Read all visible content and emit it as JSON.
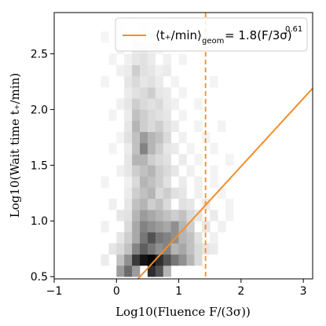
{
  "chart_data": {
    "type": "heatmap",
    "title": "",
    "xlabel": "Log10(Fluence F/(3σ))",
    "ylabel": "Log10(Wait time t₊/min)",
    "xlim": [
      -1.0,
      3.15
    ],
    "ylim": [
      0.48,
      2.87
    ],
    "xticks": [
      "−1",
      "0",
      "1",
      "2",
      "3"
    ],
    "xtick_values": [
      -1,
      0,
      1,
      2,
      3
    ],
    "yticks": [
      "0.5",
      "1.0",
      "1.5",
      "2.0",
      "2.5"
    ],
    "ytick_values": [
      0.5,
      1.0,
      1.5,
      2.0,
      2.5
    ],
    "colormap": "Greys",
    "histogram_bins": {
      "x_start": -0.5,
      "x_step": 0.125,
      "y_start": 0.5,
      "y_step": 0.1,
      "cells": [
        [
          0.0,
          0.5,
          0.4
        ],
        [
          0.125,
          0.5,
          0.6
        ],
        [
          0.25,
          0.5,
          0.4
        ],
        [
          0.5,
          0.5,
          0.85
        ],
        [
          0.625,
          0.5,
          0.7
        ],
        [
          0.75,
          0.5,
          0.3
        ],
        [
          -0.25,
          0.6,
          0.08
        ],
        [
          0.0,
          0.6,
          0.25
        ],
        [
          0.125,
          0.6,
          0.45
        ],
        [
          0.25,
          0.6,
          0.8
        ],
        [
          0.375,
          0.6,
          0.95
        ],
        [
          0.5,
          0.6,
          1.0
        ],
        [
          0.625,
          0.6,
          0.85
        ],
        [
          0.75,
          0.6,
          0.7
        ],
        [
          0.875,
          0.6,
          0.55
        ],
        [
          1.0,
          0.6,
          0.45
        ],
        [
          1.125,
          0.6,
          0.3
        ],
        [
          1.25,
          0.6,
          0.15
        ],
        [
          -0.125,
          0.7,
          0.1
        ],
        [
          0.0,
          0.7,
          0.15
        ],
        [
          0.125,
          0.7,
          0.25
        ],
        [
          0.25,
          0.7,
          0.5
        ],
        [
          0.375,
          0.7,
          0.65
        ],
        [
          0.5,
          0.7,
          0.55
        ],
        [
          0.625,
          0.7,
          0.45
        ],
        [
          0.75,
          0.7,
          0.5
        ],
        [
          0.875,
          0.7,
          0.3
        ],
        [
          1.0,
          0.7,
          0.35
        ],
        [
          1.125,
          0.7,
          0.25
        ],
        [
          1.25,
          0.7,
          0.15
        ],
        [
          1.375,
          0.7,
          0.1
        ],
        [
          1.5,
          0.7,
          0.08
        ],
        [
          0.0,
          0.8,
          0.1
        ],
        [
          0.125,
          0.8,
          0.2
        ],
        [
          0.25,
          0.8,
          0.35
        ],
        [
          0.375,
          0.8,
          0.55
        ],
        [
          0.5,
          0.8,
          0.7
        ],
        [
          0.625,
          0.8,
          0.55
        ],
        [
          0.75,
          0.8,
          0.5
        ],
        [
          0.875,
          0.8,
          0.45
        ],
        [
          1.0,
          0.8,
          0.3
        ],
        [
          1.125,
          0.8,
          0.25
        ],
        [
          1.25,
          0.8,
          0.12
        ],
        [
          1.5,
          0.8,
          0.06
        ],
        [
          -0.25,
          0.9,
          0.06
        ],
        [
          0.125,
          0.9,
          0.15
        ],
        [
          0.25,
          0.9,
          0.35
        ],
        [
          0.375,
          0.9,
          0.5
        ],
        [
          0.5,
          0.9,
          0.45
        ],
        [
          0.625,
          0.9,
          0.4
        ],
        [
          0.75,
          0.9,
          0.35
        ],
        [
          0.875,
          0.9,
          0.45
        ],
        [
          1.0,
          0.9,
          0.3
        ],
        [
          1.125,
          0.9,
          0.2
        ],
        [
          1.375,
          0.9,
          0.1
        ],
        [
          1.625,
          0.9,
          0.06
        ],
        [
          0.0,
          1.0,
          0.1
        ],
        [
          0.125,
          1.0,
          0.12
        ],
        [
          0.25,
          1.0,
          0.3
        ],
        [
          0.375,
          1.0,
          0.4
        ],
        [
          0.5,
          1.0,
          0.35
        ],
        [
          0.625,
          1.0,
          0.3
        ],
        [
          0.75,
          1.0,
          0.25
        ],
        [
          0.875,
          1.0,
          0.2
        ],
        [
          1.0,
          1.0,
          0.25
        ],
        [
          1.125,
          1.0,
          0.15
        ],
        [
          1.25,
          1.0,
          0.1
        ],
        [
          1.5,
          1.0,
          0.08
        ],
        [
          1.75,
          1.0,
          0.05
        ],
        [
          -0.125,
          1.1,
          0.06
        ],
        [
          0.125,
          1.1,
          0.1
        ],
        [
          0.25,
          1.1,
          0.25
        ],
        [
          0.375,
          1.1,
          0.3
        ],
        [
          0.5,
          1.1,
          0.2
        ],
        [
          0.625,
          1.1,
          0.25
        ],
        [
          0.75,
          1.1,
          0.15
        ],
        [
          1.0,
          1.1,
          0.12
        ],
        [
          1.125,
          1.1,
          0.1
        ],
        [
          1.375,
          1.1,
          0.08
        ],
        [
          1.75,
          1.1,
          0.05
        ],
        [
          0.125,
          1.2,
          0.08
        ],
        [
          0.25,
          1.2,
          0.2
        ],
        [
          0.375,
          1.2,
          0.25
        ],
        [
          0.5,
          1.2,
          0.3
        ],
        [
          0.625,
          1.2,
          0.15
        ],
        [
          0.75,
          1.2,
          0.2
        ],
        [
          0.875,
          1.2,
          0.12
        ],
        [
          1.0,
          1.2,
          0.1
        ],
        [
          1.25,
          1.2,
          0.06
        ],
        [
          1.625,
          1.2,
          0.05
        ],
        [
          -0.25,
          1.3,
          0.05
        ],
        [
          0.125,
          1.3,
          0.06
        ],
        [
          0.25,
          1.3,
          0.15
        ],
        [
          0.375,
          1.3,
          0.3
        ],
        [
          0.5,
          1.3,
          0.25
        ],
        [
          0.625,
          1.3,
          0.2
        ],
        [
          0.75,
          1.3,
          0.12
        ],
        [
          1.0,
          1.3,
          0.08
        ],
        [
          1.25,
          1.3,
          0.06
        ],
        [
          1.5,
          1.3,
          0.05
        ],
        [
          0.0,
          1.4,
          0.06
        ],
        [
          0.125,
          1.4,
          0.1
        ],
        [
          0.25,
          1.4,
          0.2
        ],
        [
          0.375,
          1.4,
          0.25
        ],
        [
          0.5,
          1.4,
          0.3
        ],
        [
          0.625,
          1.4,
          0.2
        ],
        [
          0.75,
          1.4,
          0.15
        ],
        [
          0.875,
          1.4,
          0.1
        ],
        [
          1.125,
          1.4,
          0.06
        ],
        [
          1.5,
          1.4,
          0.05
        ],
        [
          0.125,
          1.5,
          0.1
        ],
        [
          0.25,
          1.5,
          0.3
        ],
        [
          0.375,
          1.5,
          0.3
        ],
        [
          0.5,
          1.5,
          0.2
        ],
        [
          0.625,
          1.5,
          0.15
        ],
        [
          0.75,
          1.5,
          0.12
        ],
        [
          1.0,
          1.5,
          0.08
        ],
        [
          1.25,
          1.5,
          0.05
        ],
        [
          1.75,
          1.5,
          0.05
        ],
        [
          -0.125,
          1.6,
          0.05
        ],
        [
          0.125,
          1.6,
          0.08
        ],
        [
          0.25,
          1.6,
          0.25
        ],
        [
          0.375,
          1.6,
          0.5
        ],
        [
          0.5,
          1.6,
          0.3
        ],
        [
          0.625,
          1.6,
          0.2
        ],
        [
          0.75,
          1.6,
          0.1
        ],
        [
          0.875,
          1.6,
          0.08
        ],
        [
          1.125,
          1.6,
          0.05
        ],
        [
          1.5,
          1.6,
          0.05
        ],
        [
          0.0,
          1.7,
          0.05
        ],
        [
          0.125,
          1.7,
          0.12
        ],
        [
          0.25,
          1.7,
          0.25
        ],
        [
          0.375,
          1.7,
          0.4
        ],
        [
          0.5,
          1.7,
          0.3
        ],
        [
          0.625,
          1.7,
          0.25
        ],
        [
          0.75,
          1.7,
          0.15
        ],
        [
          1.0,
          1.7,
          0.06
        ],
        [
          1.375,
          1.7,
          0.05
        ],
        [
          0.125,
          1.8,
          0.1
        ],
        [
          0.25,
          1.8,
          0.3
        ],
        [
          0.375,
          1.8,
          0.2
        ],
        [
          0.5,
          1.8,
          0.15
        ],
        [
          0.625,
          1.8,
          0.2
        ],
        [
          0.75,
          1.8,
          0.12
        ],
        [
          0.875,
          1.8,
          0.08
        ],
        [
          1.25,
          1.8,
          0.05
        ],
        [
          1.625,
          1.8,
          0.05
        ],
        [
          -0.125,
          1.9,
          0.05
        ],
        [
          0.125,
          1.9,
          0.08
        ],
        [
          0.25,
          1.9,
          0.25
        ],
        [
          0.375,
          1.9,
          0.2
        ],
        [
          0.5,
          1.9,
          0.15
        ],
        [
          0.625,
          1.9,
          0.12
        ],
        [
          0.75,
          1.9,
          0.1
        ],
        [
          1.0,
          1.9,
          0.05
        ],
        [
          0.0,
          2.0,
          0.06
        ],
        [
          0.125,
          2.0,
          0.1
        ],
        [
          0.25,
          2.0,
          0.2
        ],
        [
          0.375,
          2.0,
          0.15
        ],
        [
          0.5,
          2.0,
          0.12
        ],
        [
          0.625,
          2.0,
          0.15
        ],
        [
          0.75,
          2.0,
          0.08
        ],
        [
          0.875,
          2.0,
          0.06
        ],
        [
          1.25,
          2.0,
          0.05
        ],
        [
          0.125,
          2.1,
          0.08
        ],
        [
          0.25,
          2.1,
          0.12
        ],
        [
          0.375,
          2.1,
          0.15
        ],
        [
          0.5,
          2.1,
          0.2
        ],
        [
          0.625,
          2.1,
          0.1
        ],
        [
          0.75,
          2.1,
          0.08
        ],
        [
          1.0,
          2.1,
          0.05
        ],
        [
          -0.25,
          2.2,
          0.05
        ],
        [
          0.125,
          2.2,
          0.1
        ],
        [
          0.25,
          2.2,
          0.15
        ],
        [
          0.375,
          2.2,
          0.1
        ],
        [
          0.5,
          2.2,
          0.12
        ],
        [
          0.625,
          2.2,
          0.08
        ],
        [
          0.875,
          2.2,
          0.05
        ],
        [
          1.5,
          2.2,
          0.05
        ],
        [
          0.0,
          2.3,
          0.06
        ],
        [
          0.125,
          2.3,
          0.08
        ],
        [
          0.25,
          2.3,
          0.2
        ],
        [
          0.375,
          2.3,
          0.12
        ],
        [
          0.5,
          2.3,
          0.1
        ],
        [
          0.625,
          2.3,
          0.06
        ],
        [
          0.75,
          2.3,
          0.08
        ],
        [
          -0.125,
          2.4,
          0.05
        ],
        [
          0.125,
          2.4,
          0.06
        ],
        [
          0.25,
          2.4,
          0.1
        ],
        [
          0.375,
          2.4,
          0.12
        ],
        [
          0.5,
          2.4,
          0.08
        ],
        [
          0.75,
          2.4,
          0.06
        ],
        [
          1.0,
          2.4,
          0.05
        ],
        [
          0.0,
          2.5,
          0.05
        ],
        [
          0.25,
          2.5,
          0.08
        ],
        [
          0.375,
          2.5,
          0.1
        ],
        [
          0.5,
          2.5,
          0.06
        ],
        [
          0.625,
          2.5,
          0.05
        ],
        [
          -0.25,
          2.6,
          0.04
        ],
        [
          0.125,
          2.6,
          0.05
        ],
        [
          0.25,
          2.6,
          0.06
        ],
        [
          0.5,
          2.6,
          0.05
        ],
        [
          0.75,
          2.6,
          0.04
        ],
        [
          0.0,
          2.7,
          0.04
        ],
        [
          0.375,
          2.7,
          0.05
        ],
        [
          0.625,
          2.7,
          0.04
        ]
      ]
    },
    "series": [
      {
        "type": "line",
        "color": "#f28e2b",
        "x": [
          0.345,
          3.15
        ],
        "y": [
          0.48,
          2.19
        ]
      },
      {
        "type": "vline",
        "color": "#f28e2b",
        "dash": "dashed",
        "x": 1.43
      }
    ],
    "legend": {
      "position": "top-right",
      "label_prefix": "⟨t₊/min⟩",
      "label_sub": "geom",
      "label_mid": "= 1.8(F/3σ)",
      "label_exp": "0.61"
    }
  }
}
